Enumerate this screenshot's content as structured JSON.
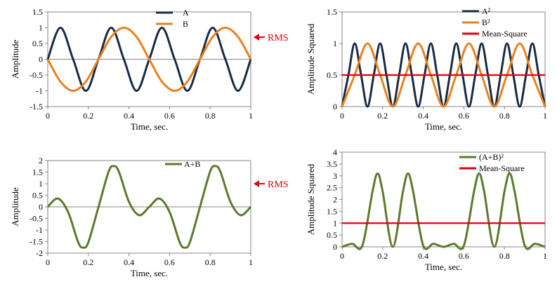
{
  "chart_data": [
    {
      "type": "line",
      "xlabel": "Time, sec.",
      "ylabel": "Amplitude",
      "xlim": [
        0,
        1
      ],
      "ylim": [
        -1.5,
        1.5
      ],
      "xticks": [
        0,
        0.2,
        0.4,
        0.6,
        0.8,
        1
      ],
      "xtick_labels": [
        "0",
        "0.2",
        "0.4",
        "0.6",
        "0.8",
        "1"
      ],
      "yticks": [
        -1.5,
        -1,
        -0.5,
        0,
        0.5,
        1,
        1.5
      ],
      "ytick_labels": [
        "-1.5",
        "-1",
        "-0.5",
        "0",
        "0.5",
        "1",
        "1.5"
      ],
      "grid": false,
      "legend_position": "top-right",
      "series": [
        {
          "name": "A",
          "color": "#172a45",
          "x": [
            0,
            0.0625,
            0.125,
            0.1875,
            0.25,
            0.3125,
            0.375,
            0.4375,
            0.5,
            0.5625,
            0.625,
            0.6875,
            0.75,
            0.8125,
            0.875,
            0.9375,
            1
          ],
          "y": [
            0,
            1,
            0,
            -1,
            0,
            1,
            0,
            -1,
            0,
            1,
            0,
            -1,
            0,
            1,
            0,
            -1,
            0
          ]
        },
        {
          "name": "B",
          "color": "#e8811f",
          "x": [
            0,
            0.0625,
            0.125,
            0.1875,
            0.25,
            0.3125,
            0.375,
            0.4375,
            0.5,
            0.5625,
            0.625,
            0.6875,
            0.75,
            0.8125,
            0.875,
            0.9375,
            1
          ],
          "y": [
            0,
            -0.71,
            -1,
            -0.71,
            0,
            0.71,
            1,
            0.71,
            0,
            -0.71,
            -1,
            -0.71,
            0,
            0.71,
            1,
            0.71,
            0
          ]
        }
      ],
      "annotation": {
        "text": "RMS",
        "color": "#e0000f",
        "y": 0.7
      }
    },
    {
      "type": "line",
      "xlabel": "Time, sec.",
      "ylabel": "Amplitude Squared",
      "xlim": [
        0,
        1
      ],
      "ylim": [
        0,
        1.5
      ],
      "xticks": [
        0,
        0.2,
        0.4,
        0.6,
        0.8,
        1
      ],
      "xtick_labels": [
        "0",
        "0.2",
        "0.4",
        "0.6",
        "0.8",
        "1"
      ],
      "yticks": [
        0,
        0.5,
        1,
        1.5
      ],
      "ytick_labels": [
        "0",
        "0.5",
        "1",
        "1.5"
      ],
      "grid": false,
      "legend_position": "top-right",
      "series": [
        {
          "name": "A²",
          "color": "#172a45",
          "x": [
            0,
            0.03125,
            0.0625,
            0.09375,
            0.125,
            0.15625,
            0.1875,
            0.21875,
            0.25,
            0.28125,
            0.3125,
            0.34375,
            0.375,
            0.40625,
            0.4375,
            0.46875,
            0.5,
            0.53125,
            0.5625,
            0.59375,
            0.625,
            0.65625,
            0.6875,
            0.71875,
            0.75,
            0.78125,
            0.8125,
            0.84375,
            0.875,
            0.90625,
            0.9375,
            0.96875,
            1
          ],
          "y": [
            0,
            0.5,
            1,
            0.5,
            0,
            0.5,
            1,
            0.5,
            0,
            0.5,
            1,
            0.5,
            0,
            0.5,
            1,
            0.5,
            0,
            0.5,
            1,
            0.5,
            0,
            0.5,
            1,
            0.5,
            0,
            0.5,
            1,
            0.5,
            0,
            0.5,
            1,
            0.5,
            0
          ]
        },
        {
          "name": "B²",
          "color": "#e8811f",
          "x": [
            0,
            0.0625,
            0.125,
            0.1875,
            0.25,
            0.3125,
            0.375,
            0.4375,
            0.5,
            0.5625,
            0.625,
            0.6875,
            0.75,
            0.8125,
            0.875,
            0.9375,
            1
          ],
          "y": [
            0,
            0.5,
            1,
            0.5,
            0,
            0.5,
            1,
            0.5,
            0,
            0.5,
            1,
            0.5,
            0,
            0.5,
            1,
            0.5,
            0
          ]
        },
        {
          "name": "Mean-Square",
          "color": "#e0000f",
          "x": [
            0,
            1
          ],
          "y": [
            0.5,
            0.5
          ]
        }
      ]
    },
    {
      "type": "line",
      "xlabel": "Time, sec.",
      "ylabel": "Amplitude",
      "xlim": [
        0,
        1
      ],
      "ylim": [
        -2,
        2
      ],
      "xticks": [
        0,
        0.2,
        0.4,
        0.6,
        0.8,
        1
      ],
      "xtick_labels": [
        "0",
        "0.2",
        "0.4",
        "0.6",
        "0.8",
        "1"
      ],
      "yticks": [
        -2,
        -1.5,
        -1,
        -0.5,
        0,
        0.5,
        1,
        1.5,
        2
      ],
      "ytick_labels": [
        "-2",
        "-1.5",
        "-1",
        "-0.5",
        "0",
        "0.5",
        "1",
        "1.5",
        "2"
      ],
      "grid": false,
      "legend_position": "top-right",
      "series": [
        {
          "name": "A+B",
          "color": "#5b7a2c",
          "x": [
            0,
            0.05,
            0.1,
            0.15,
            0.175,
            0.2,
            0.25,
            0.3,
            0.325,
            0.35,
            0.4,
            0.45,
            0.5,
            0.55,
            0.6,
            0.65,
            0.675,
            0.7,
            0.75,
            0.8,
            0.825,
            0.85,
            0.9,
            0.95,
            1
          ],
          "y": [
            0,
            0.36,
            -0.22,
            -1.53,
            -1.76,
            -1.53,
            0,
            1.53,
            1.76,
            1.53,
            0.22,
            -0.36,
            0,
            0.36,
            -0.22,
            -1.53,
            -1.76,
            -1.53,
            0,
            1.53,
            1.76,
            1.53,
            0.22,
            -0.36,
            0
          ]
        }
      ],
      "annotation": {
        "text": "RMS",
        "color": "#e0000f",
        "y": 1.0
      }
    },
    {
      "type": "line",
      "xlabel": "Time, sec.",
      "ylabel": "Amplitude Squared",
      "xlim": [
        0,
        1
      ],
      "ylim": [
        0,
        4
      ],
      "xticks": [
        0,
        0.2,
        0.4,
        0.6,
        0.8,
        1
      ],
      "xtick_labels": [
        "0",
        "0.2",
        "0.4",
        "0.6",
        "0.8",
        "1"
      ],
      "yticks": [
        0,
        0.5,
        1,
        1.5,
        2,
        2.5,
        3,
        3.5,
        4
      ],
      "ytick_labels": [
        "0",
        "0.5",
        "1",
        "1.5",
        "2",
        "2.5",
        "3",
        "3.5",
        "4"
      ],
      "grid": false,
      "legend_position": "top-right",
      "series": [
        {
          "name": "(A+B)²",
          "color": "#5b7a2c",
          "x": [
            0,
            0.05,
            0.1,
            0.15,
            0.175,
            0.2,
            0.25,
            0.3,
            0.325,
            0.35,
            0.4,
            0.45,
            0.5,
            0.55,
            0.6,
            0.65,
            0.675,
            0.7,
            0.75,
            0.8,
            0.825,
            0.85,
            0.9,
            0.95,
            1
          ],
          "y": [
            0,
            0.13,
            0.05,
            2.34,
            3.1,
            2.34,
            0,
            2.34,
            3.1,
            2.34,
            0.05,
            0.13,
            0,
            0.13,
            0.05,
            2.34,
            3.1,
            2.34,
            0,
            2.34,
            3.1,
            2.34,
            0.05,
            0.13,
            0
          ]
        },
        {
          "name": "Mean-Square",
          "color": "#e0000f",
          "x": [
            0,
            1
          ],
          "y": [
            1,
            1
          ]
        }
      ]
    }
  ]
}
